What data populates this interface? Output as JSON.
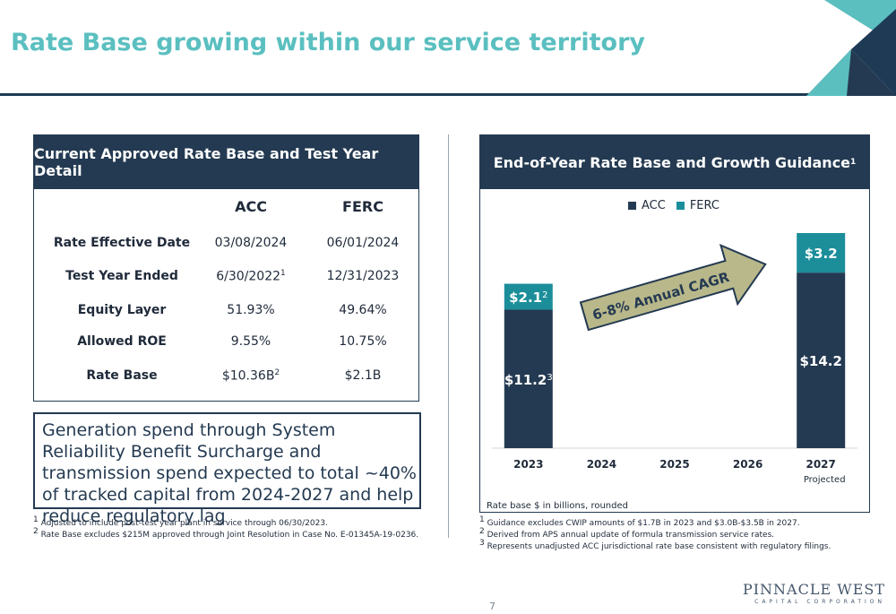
{
  "title": "Rate Base growing within our service territory",
  "left_panel": {
    "heading": "Current Approved Rate Base and Test Year Detail",
    "columns": [
      "ACC",
      "FERC"
    ],
    "rows": [
      {
        "label": "Rate Effective Date",
        "acc": "03/08/2024",
        "acc_sup": "",
        "ferc": "06/01/2024",
        "ferc_sup": ""
      },
      {
        "label": "Test Year Ended",
        "acc": "6/30/2022",
        "acc_sup": "1",
        "ferc": "12/31/2023",
        "ferc_sup": ""
      },
      {
        "label": "Equity Layer",
        "acc": "51.93%",
        "acc_sup": "",
        "ferc": "49.64%",
        "ferc_sup": ""
      },
      {
        "label": "Allowed ROE",
        "acc": "9.55%",
        "acc_sup": "",
        "ferc": "10.75%",
        "ferc_sup": ""
      },
      {
        "label": "Rate Base",
        "acc": "$10.36B",
        "acc_sup": "2",
        "ferc": "$2.1B",
        "ferc_sup": ""
      }
    ]
  },
  "callout": "Generation spend through System Reliability Benefit Surcharge and transmission spend expected to total ~40% of tracked capital from 2024-2027 and help reduce regulatory lag",
  "left_footnotes": [
    {
      "sup": "1",
      "text": "Adjusted to include post-test year plant in service through 06/30/2023."
    },
    {
      "sup": "2",
      "text": "Rate Base excludes $215M approved through Joint Resolution in Case No. E-01345A-19-0236."
    }
  ],
  "right_footnotes": [
    {
      "sup": "1",
      "text": "Guidance excludes CWIP amounts of $1.7B in 2023 and $3.0B-$3.5B in 2027."
    },
    {
      "sup": "2",
      "text": "Derived from APS annual update of formula transmission service rates."
    },
    {
      "sup": "3",
      "text": "Represents unadjusted ACC jurisdictional rate base consistent with regulatory filings."
    }
  ],
  "chart_data": {
    "type": "bar",
    "stacked": true,
    "title": "End-of-Year Rate Base and Growth Guidance",
    "title_sup": "1",
    "categories": [
      "2023",
      "2024",
      "2025",
      "2026",
      "2027"
    ],
    "category_sublabels": [
      "",
      "",
      "",
      "",
      "Projected"
    ],
    "series": [
      {
        "name": "ACC",
        "color": "#243a52",
        "values": [
          11.2,
          null,
          null,
          null,
          14.2
        ],
        "labels": [
          "$11.2",
          "",
          "",
          "",
          "$14.2"
        ],
        "label_sups": [
          "3",
          "",
          "",
          "",
          ""
        ]
      },
      {
        "name": "FERC",
        "color": "#1b8e9a",
        "values": [
          2.1,
          null,
          null,
          null,
          3.2
        ],
        "labels": [
          "$2.1",
          "",
          "",
          "",
          "$3.2"
        ],
        "label_sups": [
          "2",
          "",
          "",
          "",
          ""
        ]
      }
    ],
    "ylim": [
      0,
      17.4
    ],
    "legend": "top",
    "annotation": "6-8% Annual CAGR",
    "note": "Rate base $ in billions, rounded"
  },
  "logo": {
    "main": "PINNACLE WEST",
    "sub": "CAPITAL CORPORATION"
  },
  "page_number": "7",
  "colors": {
    "navy": "#243a52",
    "teal": "#1b8e9a",
    "title_teal": "#5bbfc0",
    "arrow": "#b9b88a"
  }
}
